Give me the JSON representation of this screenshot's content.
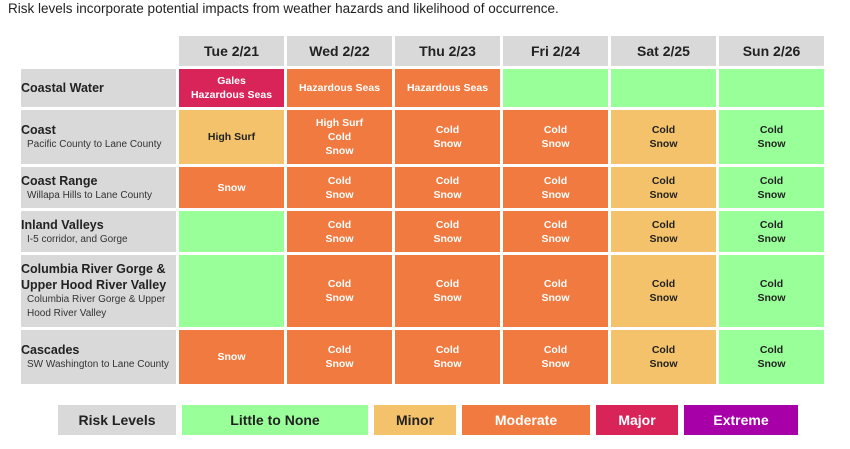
{
  "caption": "Risk levels incorporate potential impacts from weather hazards and likelihood of occurrence.",
  "days": [
    "Tue 2/21",
    "Wed 2/22",
    "Thu 2/23",
    "Fri 2/24",
    "Sat 2/25",
    "Sun 2/26"
  ],
  "rows": [
    {
      "title": "Coastal Water",
      "sub": "",
      "cells": [
        {
          "level": "major",
          "line1": "Gales",
          "line2": "Hazardous Seas",
          "line3": ""
        },
        {
          "level": "moderate",
          "line1": "Hazardous Seas",
          "line2": "",
          "line3": ""
        },
        {
          "level": "moderate",
          "line1": "Hazardous Seas",
          "line2": "",
          "line3": ""
        },
        {
          "level": "none",
          "line1": "",
          "line2": "",
          "line3": ""
        },
        {
          "level": "none",
          "line1": "",
          "line2": "",
          "line3": ""
        },
        {
          "level": "none",
          "line1": "",
          "line2": "",
          "line3": ""
        }
      ]
    },
    {
      "title": "Coast",
      "sub": "Pacific County to Lane County",
      "cells": [
        {
          "level": "minor",
          "line1": "High Surf",
          "line2": "",
          "line3": ""
        },
        {
          "level": "moderate",
          "line1": "High Surf",
          "line2": "Cold",
          "line3": "Snow"
        },
        {
          "level": "moderate",
          "line1": "Cold",
          "line2": "Snow",
          "line3": ""
        },
        {
          "level": "moderate",
          "line1": "Cold",
          "line2": "Snow",
          "line3": ""
        },
        {
          "level": "minor",
          "line1": "Cold",
          "line2": "Snow",
          "line3": ""
        },
        {
          "level": "none",
          "line1": "Cold",
          "line2": "Snow",
          "line3": ""
        }
      ]
    },
    {
      "title": "Coast Range",
      "sub": "Willapa Hills to Lane County",
      "cells": [
        {
          "level": "moderate",
          "line1": "Snow",
          "line2": "",
          "line3": ""
        },
        {
          "level": "moderate",
          "line1": "Cold",
          "line2": "Snow",
          "line3": ""
        },
        {
          "level": "moderate",
          "line1": "Cold",
          "line2": "Snow",
          "line3": ""
        },
        {
          "level": "moderate",
          "line1": "Cold",
          "line2": "Snow",
          "line3": ""
        },
        {
          "level": "minor",
          "line1": "Cold",
          "line2": "Snow",
          "line3": ""
        },
        {
          "level": "none",
          "line1": "Cold",
          "line2": "Snow",
          "line3": ""
        }
      ]
    },
    {
      "title": "Inland Valleys",
      "sub": "I-5 corridor, and Gorge",
      "cells": [
        {
          "level": "none",
          "line1": "",
          "line2": "",
          "line3": ""
        },
        {
          "level": "moderate",
          "line1": "Cold",
          "line2": "Snow",
          "line3": ""
        },
        {
          "level": "moderate",
          "line1": "Cold",
          "line2": "Snow",
          "line3": ""
        },
        {
          "level": "moderate",
          "line1": "Cold",
          "line2": "Snow",
          "line3": ""
        },
        {
          "level": "minor",
          "line1": "Cold",
          "line2": "Snow",
          "line3": ""
        },
        {
          "level": "none",
          "line1": "Cold",
          "line2": "Snow",
          "line3": ""
        }
      ]
    },
    {
      "title": "Columbia River Gorge & Upper Hood River Valley",
      "sub": "Columbia River Gorge & Upper Hood River Valley",
      "cells": [
        {
          "level": "none",
          "line1": "",
          "line2": "",
          "line3": ""
        },
        {
          "level": "moderate",
          "line1": "Cold",
          "line2": "Snow",
          "line3": ""
        },
        {
          "level": "moderate",
          "line1": "Cold",
          "line2": "Snow",
          "line3": ""
        },
        {
          "level": "moderate",
          "line1": "Cold",
          "line2": "Snow",
          "line3": ""
        },
        {
          "level": "minor",
          "line1": "Cold",
          "line2": "Snow",
          "line3": ""
        },
        {
          "level": "none",
          "line1": "Cold",
          "line2": "Snow",
          "line3": ""
        }
      ]
    },
    {
      "title": "Cascades",
      "sub": "SW Washington to Lane County",
      "cells": [
        {
          "level": "moderate",
          "line1": "Snow",
          "line2": "",
          "line3": ""
        },
        {
          "level": "moderate",
          "line1": "Cold",
          "line2": "Snow",
          "line3": ""
        },
        {
          "level": "moderate",
          "line1": "Cold",
          "line2": "Snow",
          "line3": ""
        },
        {
          "level": "moderate",
          "line1": "Cold",
          "line2": "Snow",
          "line3": ""
        },
        {
          "level": "minor",
          "line1": "Cold",
          "line2": "Snow",
          "line3": ""
        },
        {
          "level": "none",
          "line1": "Cold",
          "line2": "Snow",
          "line3": ""
        }
      ]
    }
  ],
  "legend": {
    "label": "Risk Levels",
    "none": "Little to None",
    "minor": "Minor",
    "moderate": "Moderate",
    "major": "Major",
    "extreme": "Extreme"
  },
  "colors": {
    "none": "#99ff99",
    "minor": "#f4c26b",
    "moderate": "#f07a3f",
    "major": "#d9245a",
    "extreme": "#a800a8",
    "header": "#d9d9d9"
  }
}
